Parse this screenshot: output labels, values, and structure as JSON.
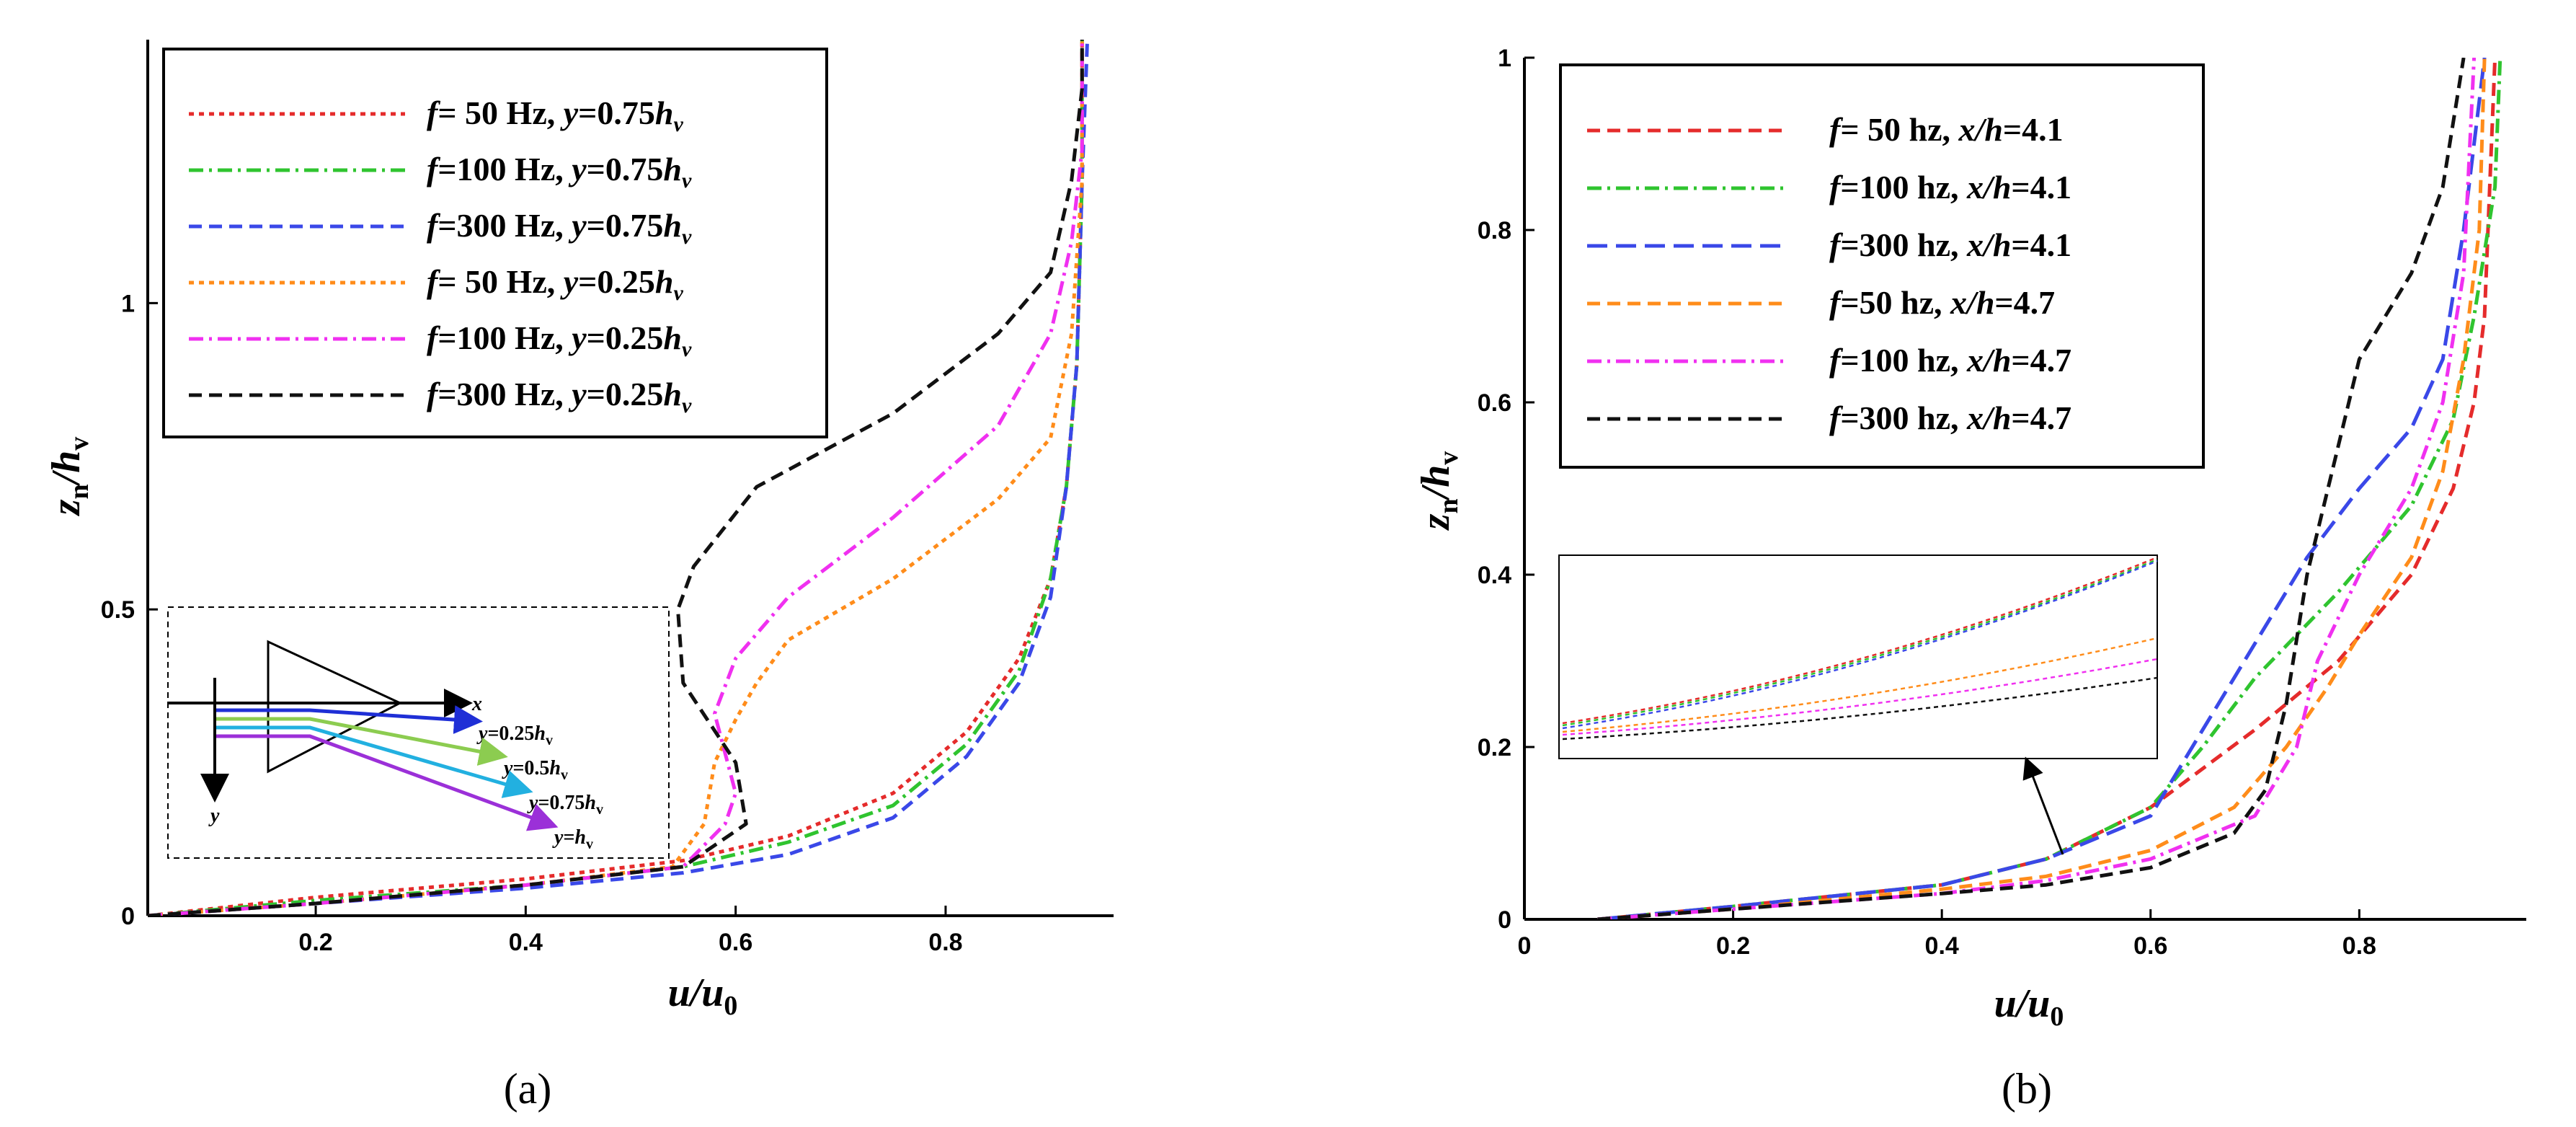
{
  "chart_data": [
    {
      "id": "a",
      "type": "line",
      "caption": "(a)",
      "xlabel": "u/u0",
      "ylabel": "zn/hv",
      "xlim": [
        0.04,
        0.96
      ],
      "ylim": [
        0,
        1.43
      ],
      "xticks": [
        0.2,
        0.4,
        0.6,
        0.8
      ],
      "xtick_labels": [
        "0.2",
        "0.4",
        "0.6",
        "0.8"
      ],
      "yticks": [
        0,
        0.5,
        1
      ],
      "ytick_labels": [
        "0",
        "0.5",
        "1"
      ],
      "legend_position": "top-left",
      "series": [
        {
          "name": "f= 50 Hz, y=0.75hv",
          "legend": [
            "f",
            "= 50 Hz, ",
            "y",
            "=0.75",
            "h",
            "v"
          ],
          "color": "#e52b2b",
          "dash": "dotted",
          "x": [
            0.04,
            0.2,
            0.4,
            0.55,
            0.65,
            0.75,
            0.82,
            0.87,
            0.9,
            0.915,
            0.925,
            0.93,
            0.93
          ],
          "y": [
            0,
            0.03,
            0.06,
            0.09,
            0.13,
            0.2,
            0.3,
            0.42,
            0.55,
            0.7,
            0.9,
            1.2,
            1.43
          ]
        },
        {
          "name": "f=100 Hz, y=0.75hv",
          "legend": [
            "f",
            "=100 Hz, ",
            "y",
            "=0.75",
            "h",
            "v"
          ],
          "color": "#2fc42f",
          "dash": "dashdot",
          "x": [
            0.04,
            0.2,
            0.4,
            0.55,
            0.65,
            0.75,
            0.82,
            0.87,
            0.9,
            0.915,
            0.925,
            0.93,
            0.93
          ],
          "y": [
            0,
            0.025,
            0.05,
            0.08,
            0.12,
            0.18,
            0.28,
            0.4,
            0.55,
            0.7,
            0.9,
            1.2,
            1.43
          ]
        },
        {
          "name": "f=300 Hz, y=0.75hv",
          "legend": [
            "f",
            "=300 Hz, ",
            "y",
            "=0.75",
            "h",
            "v"
          ],
          "color": "#3a48e8",
          "dash": "dashed",
          "x": [
            0.04,
            0.2,
            0.4,
            0.55,
            0.65,
            0.75,
            0.82,
            0.87,
            0.9,
            0.915,
            0.925,
            0.93,
            0.935
          ],
          "y": [
            0,
            0.02,
            0.045,
            0.07,
            0.1,
            0.16,
            0.26,
            0.38,
            0.52,
            0.7,
            0.9,
            1.2,
            1.43
          ]
        },
        {
          "name": "f= 50 Hz, y=0.25hv",
          "legend": [
            "f",
            "= 50 Hz, ",
            "y",
            "=0.25",
            "h",
            "v"
          ],
          "color": "#ff8c1a",
          "dash": "dotted",
          "x": [
            0.04,
            0.2,
            0.4,
            0.54,
            0.57,
            0.58,
            0.6,
            0.62,
            0.65,
            0.75,
            0.85,
            0.9,
            0.92,
            0.93,
            0.93
          ],
          "y": [
            0,
            0.02,
            0.05,
            0.08,
            0.15,
            0.25,
            0.32,
            0.38,
            0.45,
            0.55,
            0.68,
            0.78,
            0.95,
            1.2,
            1.43
          ]
        },
        {
          "name": "f=100 Hz, y=0.25hv",
          "legend": [
            "f",
            "=100 Hz, ",
            "y",
            "=0.25",
            "h",
            "v"
          ],
          "color": "#f030f0",
          "dash": "dashdot",
          "x": [
            0.04,
            0.2,
            0.4,
            0.55,
            0.59,
            0.6,
            0.58,
            0.6,
            0.65,
            0.75,
            0.85,
            0.9,
            0.92,
            0.93,
            0.93
          ],
          "y": [
            0,
            0.02,
            0.05,
            0.08,
            0.15,
            0.2,
            0.33,
            0.42,
            0.52,
            0.65,
            0.8,
            0.95,
            1.1,
            1.25,
            1.43
          ]
        },
        {
          "name": "f=300 Hz, y=0.25hv",
          "legend": [
            "f",
            "=300 Hz, ",
            "y",
            "=0.25",
            "h",
            "v"
          ],
          "color": "#111111",
          "dash": "dashed",
          "x": [
            0.04,
            0.2,
            0.4,
            0.55,
            0.61,
            0.6,
            0.55,
            0.545,
            0.56,
            0.62,
            0.75,
            0.85,
            0.9,
            0.92,
            0.93,
            0.93
          ],
          "y": [
            0,
            0.02,
            0.05,
            0.08,
            0.15,
            0.25,
            0.38,
            0.5,
            0.57,
            0.7,
            0.82,
            0.95,
            1.05,
            1.2,
            1.35,
            1.43
          ]
        }
      ],
      "inset": {
        "x_label": "x",
        "y_label": "y",
        "rays": [
          {
            "label": [
              "y",
              "=0.25",
              "h",
              "v"
            ],
            "color": "#1f2fd6"
          },
          {
            "label": [
              "y",
              "=0.5",
              "h",
              "v"
            ],
            "color": "#8ccc50"
          },
          {
            "label": [
              "y",
              "=0.75",
              "h",
              "v"
            ],
            "color": "#22b0e0"
          },
          {
            "label": [
              "y",
              "=",
              "h",
              "v"
            ],
            "color": "#9b30d8"
          }
        ]
      }
    },
    {
      "id": "b",
      "type": "line",
      "caption": "(b)",
      "xlabel": "u/u0",
      "ylabel": "zn/hv",
      "xlim": [
        0,
        0.96
      ],
      "ylim": [
        0,
        1
      ],
      "xticks": [
        0,
        0.2,
        0.4,
        0.6,
        0.8
      ],
      "xtick_labels": [
        "0",
        "0.2",
        "0.4",
        "0.6",
        "0.8"
      ],
      "yticks": [
        0,
        0.2,
        0.4,
        0.6,
        0.8,
        1
      ],
      "ytick_labels": [
        "0",
        "0.2",
        "0.4",
        "0.6",
        "0.8",
        "1"
      ],
      "legend_position": "top-left",
      "series": [
        {
          "name": "f= 50 hz, x/h=4.1",
          "legend": [
            "f",
            "= 50 hz, ",
            "x/h",
            "=4.1"
          ],
          "color": "#e52b2b",
          "dash": "dashed",
          "x": [
            0.07,
            0.2,
            0.4,
            0.5,
            0.6,
            0.7,
            0.78,
            0.85,
            0.89,
            0.91,
            0.92,
            0.925,
            0.93
          ],
          "y": [
            0,
            0.015,
            0.04,
            0.07,
            0.13,
            0.22,
            0.3,
            0.4,
            0.5,
            0.6,
            0.7,
            0.85,
            1
          ]
        },
        {
          "name": "f=100 hz, x/h=4.1",
          "legend": [
            "f",
            "=100 hz, ",
            "x/h",
            "=4.1"
          ],
          "color": "#2fc42f",
          "dash": "dashdot",
          "x": [
            0.07,
            0.2,
            0.4,
            0.5,
            0.6,
            0.65,
            0.7,
            0.78,
            0.85,
            0.89,
            0.91,
            0.93,
            0.935
          ],
          "y": [
            0,
            0.015,
            0.04,
            0.07,
            0.13,
            0.2,
            0.28,
            0.38,
            0.48,
            0.58,
            0.7,
            0.85,
            1
          ]
        },
        {
          "name": "f=300 hz, x/h=4.1",
          "legend": [
            "f",
            "=300 hz, ",
            "x/h",
            "=4.1"
          ],
          "color": "#3a48e8",
          "dash": "longdash",
          "x": [
            0.07,
            0.2,
            0.4,
            0.5,
            0.6,
            0.65,
            0.7,
            0.75,
            0.8,
            0.85,
            0.88,
            0.9,
            0.92
          ],
          "y": [
            0,
            0.015,
            0.04,
            0.07,
            0.12,
            0.22,
            0.32,
            0.42,
            0.5,
            0.57,
            0.65,
            0.8,
            1
          ]
        },
        {
          "name": "f=50 hz,  x/h=4.7",
          "legend": [
            "f",
            "=50 hz,  ",
            "x/h",
            "=4.7"
          ],
          "color": "#ff8c1a",
          "dash": "dashed",
          "x": [
            0.07,
            0.2,
            0.4,
            0.5,
            0.6,
            0.68,
            0.73,
            0.77,
            0.8,
            0.85,
            0.88,
            0.9,
            0.915,
            0.92
          ],
          "y": [
            0,
            0.012,
            0.035,
            0.05,
            0.08,
            0.13,
            0.2,
            0.27,
            0.33,
            0.42,
            0.52,
            0.65,
            0.8,
            1
          ]
        },
        {
          "name": "f=100 hz, x/h=4.7",
          "legend": [
            "f",
            "=100 hz, ",
            "x/h",
            "=4.7"
          ],
          "color": "#f030f0",
          "dash": "dashdot",
          "x": [
            0.07,
            0.2,
            0.4,
            0.5,
            0.6,
            0.7,
            0.74,
            0.76,
            0.8,
            0.85,
            0.88,
            0.9,
            0.91
          ],
          "y": [
            0,
            0.012,
            0.03,
            0.045,
            0.07,
            0.12,
            0.2,
            0.3,
            0.4,
            0.5,
            0.6,
            0.75,
            1
          ]
        },
        {
          "name": "f=300 hz, x/h=4.7",
          "legend": [
            "f",
            "=300 hz, ",
            "x/h",
            "=4.7"
          ],
          "color": "#111111",
          "dash": "dashed",
          "x": [
            0.07,
            0.2,
            0.4,
            0.5,
            0.6,
            0.68,
            0.71,
            0.73,
            0.75,
            0.77,
            0.8,
            0.85,
            0.88,
            0.9
          ],
          "y": [
            0,
            0.012,
            0.03,
            0.04,
            0.06,
            0.1,
            0.15,
            0.25,
            0.4,
            0.5,
            0.65,
            0.75,
            0.85,
            1
          ]
        }
      ]
    }
  ]
}
